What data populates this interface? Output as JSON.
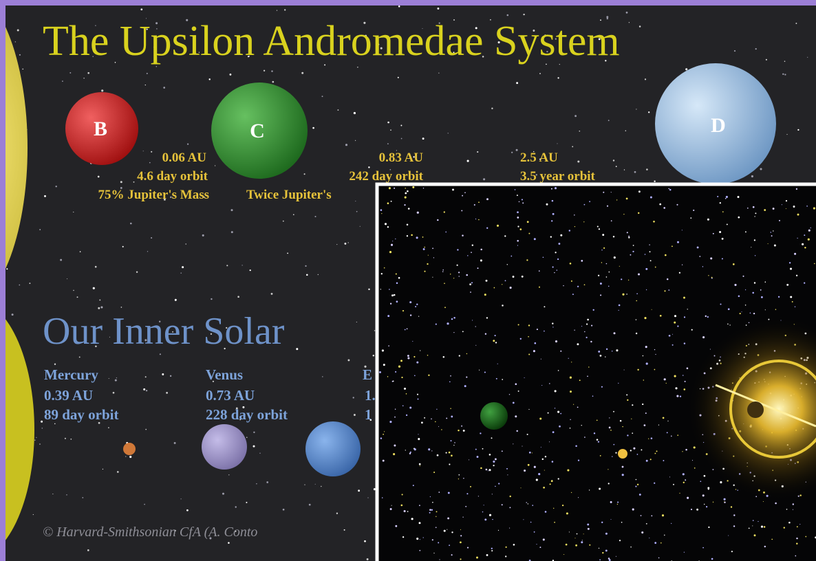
{
  "title": "The Upsilon Andromedae System",
  "upsilon_planets": [
    {
      "label": "B",
      "distance": "0.06 AU",
      "orbit": "4.6 day orbit",
      "mass": "75% Jupiter's Mass"
    },
    {
      "label": "C",
      "distance": "0.83 AU",
      "orbit": "242 day orbit",
      "mass": "Twice Jupiter's"
    },
    {
      "label": "D",
      "distance": "2.5 AU",
      "orbit": "3.5 year orbit"
    }
  ],
  "solar_title": "Our Inner Solar",
  "solar_planets": [
    {
      "name": "Mercury",
      "distance": "0.39 AU",
      "orbit": "89 day orbit"
    },
    {
      "name": "Venus",
      "distance": "0.73 AU",
      "orbit": "228 day orbit"
    },
    {
      "name": "E",
      "distance": "1.",
      "orbit": "1"
    }
  ],
  "credit": "© Harvard-Smithsonian CfA (A. Conto"
}
